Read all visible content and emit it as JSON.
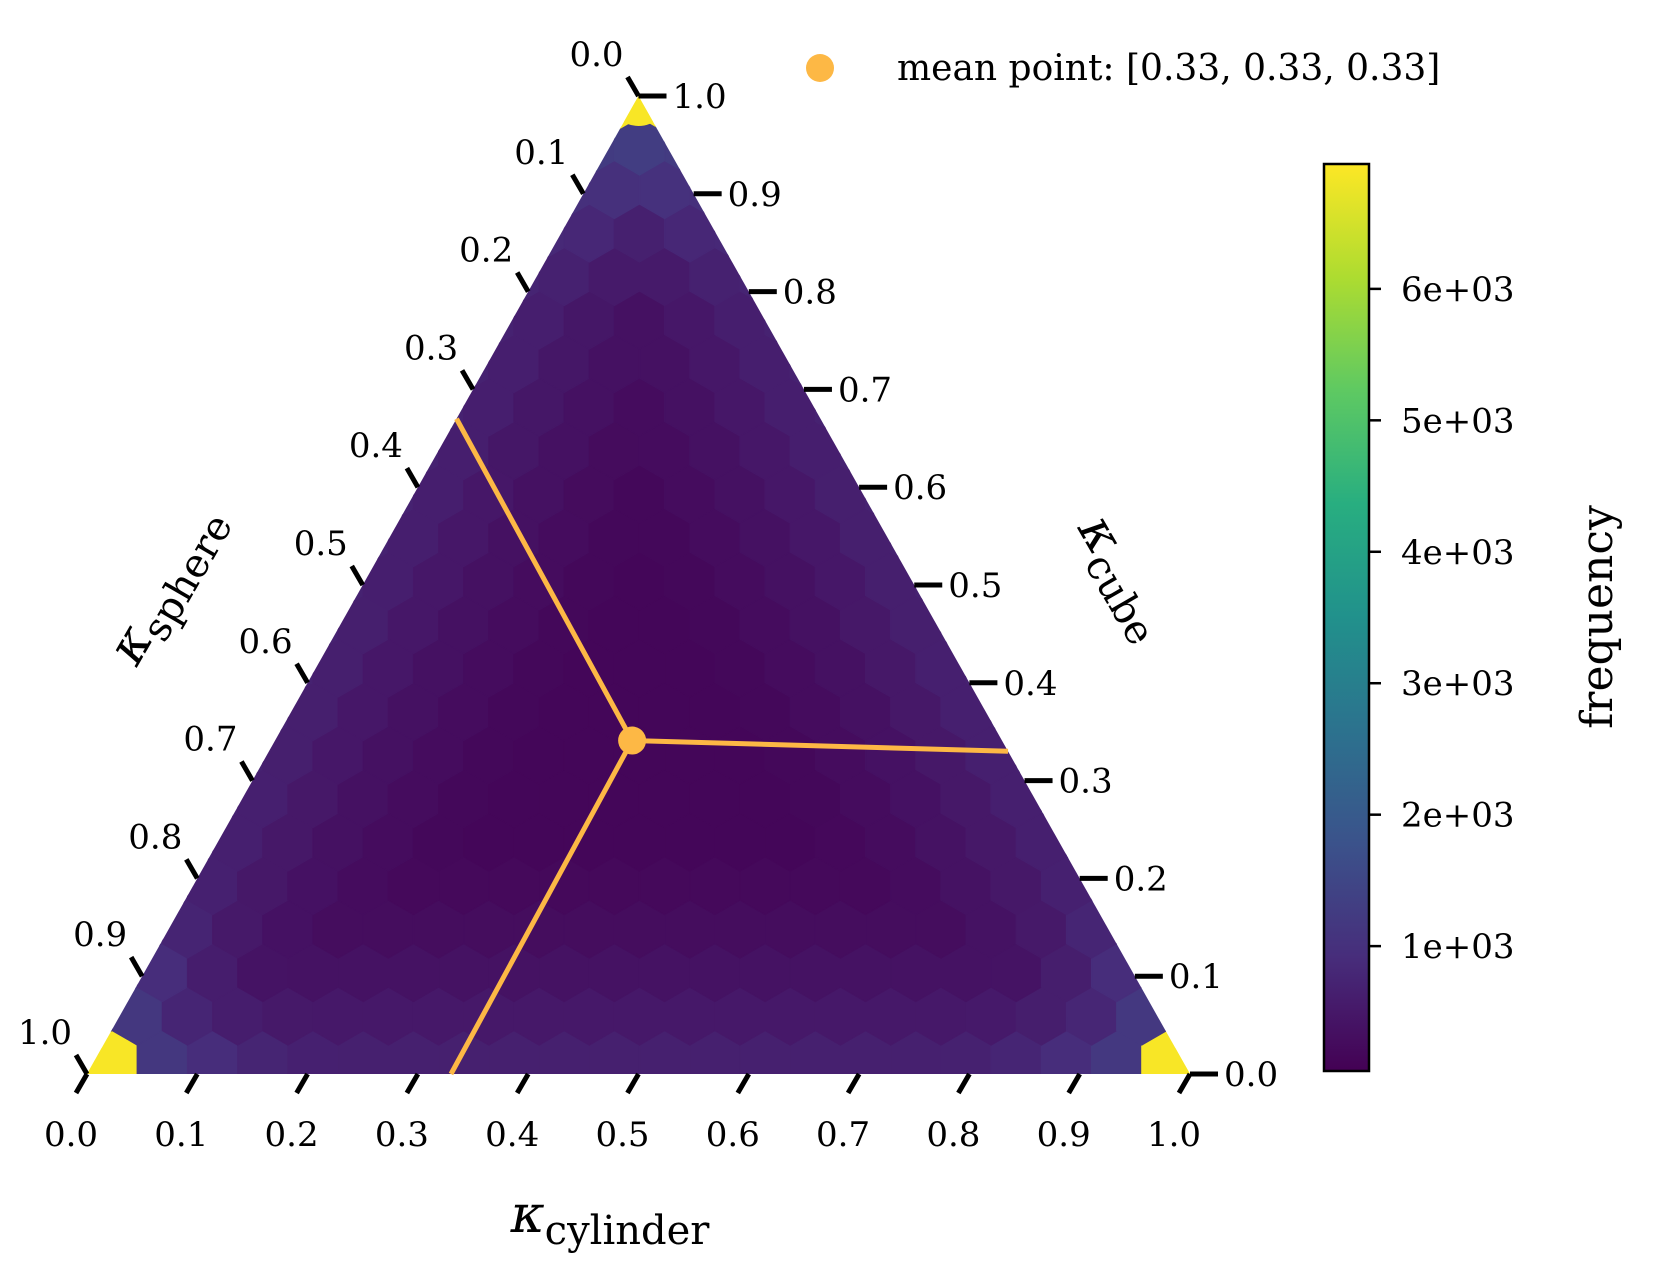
{
  "chart_data": {
    "type": "heatmap",
    "subtype": "ternary-hexbin",
    "axes": {
      "bottom": {
        "name": "κ",
        "subscript": "cylinder",
        "ticks": [
          "0.0",
          "0.1",
          "0.2",
          "0.3",
          "0.4",
          "0.5",
          "0.6",
          "0.7",
          "0.8",
          "0.9",
          "1.0"
        ]
      },
      "left": {
        "name": "κ",
        "subscript": "sphere",
        "ticks": [
          "0.0",
          "0.1",
          "0.2",
          "0.3",
          "0.4",
          "0.5",
          "0.6",
          "0.7",
          "0.8",
          "0.9",
          "1.0"
        ]
      },
      "right": {
        "name": "κ",
        "subscript": "cube",
        "ticks": [
          "0.0",
          "0.1",
          "0.2",
          "0.3",
          "0.4",
          "0.5",
          "0.6",
          "0.7",
          "0.8",
          "0.9",
          "1.0"
        ]
      }
    },
    "mean_point": {
      "sphere": 0.33,
      "cube": 0.33,
      "cylinder": 0.33,
      "color": "#FDB845"
    },
    "legend": {
      "label": "mean point: [0.33, 0.33, 0.33]",
      "position": "top-right"
    },
    "colorbar": {
      "title": "frequency",
      "range": [
        50,
        6950
      ],
      "ticks": [
        1000,
        2000,
        3000,
        4000,
        5000,
        6000
      ],
      "tick_labels": [
        "1e+03",
        "2e+03",
        "3e+03",
        "4e+03",
        "5e+03",
        "6e+03"
      ],
      "colormap": "viridis"
    },
    "density_note_values": {
      "corner_max": 6900,
      "near_corner": 1800,
      "edge": 700,
      "center": 150
    }
  }
}
